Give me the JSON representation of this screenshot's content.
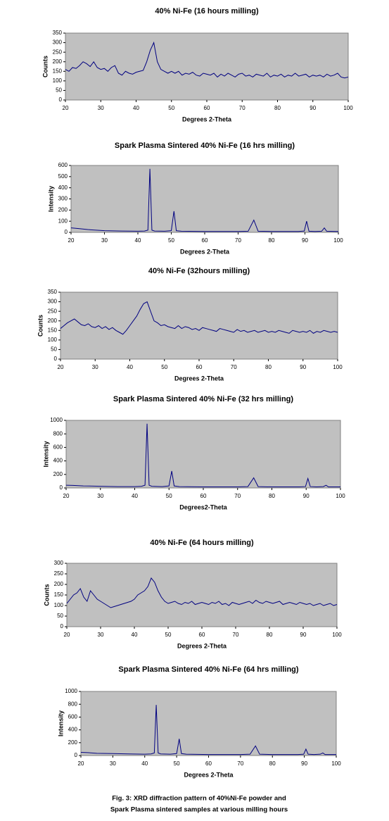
{
  "chart_data": [
    {
      "type": "line",
      "title": "40% Ni-Fe (16 hours milling)",
      "x_label": "Degrees 2-Theta",
      "y_label": "Counts",
      "x": [
        20,
        21,
        22,
        23,
        24,
        25,
        26,
        27,
        28,
        29,
        30,
        31,
        32,
        33,
        34,
        35,
        36,
        37,
        38,
        39,
        40,
        41,
        42,
        43,
        44,
        45,
        46,
        47,
        48,
        49,
        50,
        51,
        52,
        53,
        54,
        55,
        56,
        57,
        58,
        59,
        60,
        61,
        62,
        63,
        64,
        65,
        66,
        67,
        68,
        69,
        70,
        71,
        72,
        73,
        74,
        75,
        76,
        77,
        78,
        79,
        80,
        81,
        82,
        83,
        84,
        85,
        86,
        87,
        88,
        89,
        90,
        91,
        92,
        93,
        94,
        95,
        96,
        97,
        98,
        99,
        100
      ],
      "series": [
        {
          "name": "40% Ni-Fe (16 hours milling)",
          "color": "#000080",
          "values": [
            160,
            150,
            170,
            165,
            180,
            200,
            190,
            175,
            200,
            170,
            160,
            165,
            150,
            170,
            180,
            140,
            130,
            150,
            140,
            135,
            145,
            150,
            155,
            200,
            260,
            300,
            200,
            160,
            150,
            140,
            150,
            140,
            150,
            130,
            140,
            135,
            145,
            130,
            125,
            140,
            135,
            130,
            140,
            120,
            135,
            125,
            140,
            130,
            120,
            135,
            140,
            125,
            130,
            120,
            135,
            130,
            125,
            140,
            120,
            130,
            125,
            135,
            120,
            130,
            125,
            140,
            125,
            130,
            135,
            120,
            130,
            125,
            130,
            120,
            135,
            125,
            130,
            140,
            120,
            115,
            120
          ]
        }
      ],
      "xlim": [
        20,
        100
      ],
      "xticks": [
        20,
        30,
        40,
        50,
        60,
        70,
        80,
        90,
        100
      ],
      "ylim": [
        0,
        350
      ],
      "yticks": [
        0,
        50,
        100,
        150,
        200,
        250,
        300,
        350
      ],
      "background": "#c0c0c0"
    },
    {
      "type": "line",
      "title": "Spark Plasma Sintered 40% Ni-Fe (16 hrs milling)",
      "x_label": "Degrees 2-Theta",
      "y_label": "Intensity",
      "x": [
        20,
        22,
        25,
        30,
        35,
        40,
        42,
        43,
        43.6,
        44.2,
        45,
        48,
        50,
        50.8,
        51.5,
        53,
        60,
        70,
        73,
        74.7,
        76,
        80,
        88,
        89.8,
        90.5,
        91.2,
        93,
        95,
        95.8,
        96.5,
        100
      ],
      "series": [
        {
          "name": "Spark Plasma Sintered 40% Ni-Fe (16 hrs milling)",
          "color": "#000080",
          "values": [
            40,
            35,
            25,
            15,
            12,
            10,
            12,
            20,
            570,
            20,
            12,
            10,
            15,
            190,
            15,
            10,
            8,
            8,
            10,
            110,
            10,
            8,
            8,
            12,
            100,
            10,
            8,
            10,
            40,
            10,
            8
          ]
        }
      ],
      "xlim": [
        20,
        100
      ],
      "xticks": [
        20,
        30,
        40,
        50,
        60,
        70,
        80,
        90,
        100
      ],
      "ylim": [
        0,
        600
      ],
      "yticks": [
        0,
        100,
        200,
        300,
        400,
        500,
        600
      ],
      "background": "#c0c0c0"
    },
    {
      "type": "line",
      "title": "40% Ni-Fe (32hours milling)",
      "x_label": "Degrees 2-Theta",
      "y_label": "Counts",
      "x": [
        20,
        21,
        22,
        23,
        24,
        25,
        26,
        27,
        28,
        29,
        30,
        31,
        32,
        33,
        34,
        35,
        36,
        37,
        38,
        39,
        40,
        41,
        42,
        43,
        44,
        45,
        46,
        47,
        48,
        49,
        50,
        51,
        52,
        53,
        54,
        55,
        56,
        57,
        58,
        59,
        60,
        61,
        62,
        63,
        64,
        65,
        66,
        67,
        68,
        69,
        70,
        71,
        72,
        73,
        74,
        75,
        76,
        77,
        78,
        79,
        80,
        81,
        82,
        83,
        84,
        85,
        86,
        87,
        88,
        89,
        90,
        91,
        92,
        93,
        94,
        95,
        96,
        97,
        98,
        99,
        100
      ],
      "series": [
        {
          "name": "40% Ni-Fe (32hours milling)",
          "color": "#000080",
          "values": [
            160,
            175,
            190,
            200,
            210,
            195,
            180,
            175,
            185,
            170,
            165,
            175,
            160,
            170,
            155,
            165,
            150,
            140,
            130,
            150,
            175,
            200,
            225,
            260,
            290,
            300,
            250,
            200,
            190,
            175,
            180,
            170,
            165,
            160,
            175,
            160,
            170,
            165,
            155,
            160,
            150,
            165,
            160,
            155,
            150,
            145,
            160,
            155,
            150,
            145,
            140,
            155,
            145,
            150,
            140,
            145,
            150,
            140,
            145,
            150,
            140,
            145,
            140,
            150,
            145,
            140,
            135,
            150,
            145,
            140,
            145,
            140,
            150,
            135,
            145,
            140,
            150,
            145,
            140,
            145,
            140
          ]
        }
      ],
      "xlim": [
        20,
        100
      ],
      "xticks": [
        20,
        30,
        40,
        50,
        60,
        70,
        80,
        90,
        100
      ],
      "ylim": [
        0,
        350
      ],
      "yticks": [
        0,
        50,
        100,
        150,
        200,
        250,
        300,
        350
      ],
      "background": "#c0c0c0"
    },
    {
      "type": "line",
      "title": "Spark Plasma Sintered 40% Ni-Fe (32 hrs milling)",
      "x_label": "Degrees2-Theta",
      "y_label": "Intensity",
      "x": [
        20,
        22,
        25,
        30,
        35,
        40,
        42,
        43,
        43.6,
        44.2,
        45,
        48,
        50,
        50.8,
        51.5,
        53,
        60,
        70,
        73,
        74.7,
        76,
        80,
        88,
        89.8,
        90.5,
        91.2,
        93,
        95,
        95.8,
        96.5,
        100
      ],
      "series": [
        {
          "name": "Spark Plasma Sintered 40% Ni-Fe (32 hrs milling)",
          "color": "#000080",
          "values": [
            40,
            38,
            30,
            25,
            20,
            20,
            25,
            40,
            950,
            40,
            25,
            20,
            30,
            250,
            30,
            20,
            15,
            15,
            20,
            150,
            20,
            15,
            15,
            20,
            140,
            20,
            15,
            20,
            40,
            15,
            15
          ]
        }
      ],
      "xlim": [
        20,
        100
      ],
      "xticks": [
        20,
        30,
        40,
        50,
        60,
        70,
        80,
        90,
        100
      ],
      "ylim": [
        0,
        1000
      ],
      "yticks": [
        0,
        200,
        400,
        600,
        800,
        1000
      ],
      "background": "#c0c0c0"
    },
    {
      "type": "line",
      "title": "40% Ni-Fe (64 hours milling)",
      "x_label": "Degrees 2-Theta",
      "y_label": "Counts",
      "x": [
        20,
        21,
        22,
        23,
        24,
        25,
        26,
        27,
        28,
        29,
        30,
        31,
        32,
        33,
        34,
        35,
        36,
        37,
        38,
        39,
        40,
        41,
        42,
        43,
        44,
        45,
        46,
        47,
        48,
        49,
        50,
        51,
        52,
        53,
        54,
        55,
        56,
        57,
        58,
        59,
        60,
        61,
        62,
        63,
        64,
        65,
        66,
        67,
        68,
        69,
        70,
        71,
        72,
        73,
        74,
        75,
        76,
        77,
        78,
        79,
        80,
        81,
        82,
        83,
        84,
        85,
        86,
        87,
        88,
        89,
        90,
        91,
        92,
        93,
        94,
        95,
        96,
        97,
        98,
        99,
        100
      ],
      "series": [
        {
          "name": "40% Ni-Fe (64 hours milling)",
          "color": "#000080",
          "values": [
            110,
            130,
            150,
            160,
            180,
            140,
            120,
            170,
            150,
            130,
            120,
            110,
            100,
            90,
            95,
            100,
            105,
            110,
            115,
            120,
            130,
            150,
            160,
            170,
            190,
            230,
            210,
            170,
            140,
            120,
            110,
            115,
            120,
            110,
            105,
            115,
            110,
            120,
            105,
            110,
            115,
            110,
            105,
            115,
            110,
            120,
            105,
            110,
            100,
            115,
            110,
            105,
            110,
            115,
            120,
            110,
            125,
            115,
            110,
            120,
            115,
            110,
            115,
            120,
            105,
            110,
            115,
            110,
            105,
            115,
            110,
            105,
            110,
            100,
            105,
            110,
            100,
            105,
            110,
            100,
            105
          ]
        }
      ],
      "xlim": [
        20,
        100
      ],
      "xticks": [
        20,
        30,
        40,
        50,
        60,
        70,
        80,
        90,
        100
      ],
      "ylim": [
        0,
        300
      ],
      "yticks": [
        0,
        50,
        100,
        150,
        200,
        250,
        300
      ],
      "background": "#c0c0c0"
    },
    {
      "type": "line",
      "title": "Spark Plasma Sintered 40% Ni-Fe (64 hrs milling)",
      "x_label": "Degrees 2-Theta",
      "y_label": "Intensity",
      "x": [
        20,
        22,
        25,
        30,
        35,
        40,
        42,
        43,
        43.6,
        44.2,
        45,
        48,
        50,
        50.8,
        51.5,
        53,
        60,
        70,
        73,
        74.7,
        76,
        80,
        88,
        89.8,
        90.5,
        91.2,
        93,
        95,
        95.8,
        96.5,
        100
      ],
      "series": [
        {
          "name": "Spark Plasma Sintered 40% Ni-Fe (64 hrs milling)",
          "color": "#000080",
          "values": [
            50,
            45,
            35,
            30,
            25,
            20,
            25,
            40,
            790,
            40,
            25,
            20,
            30,
            260,
            30,
            20,
            15,
            15,
            20,
            150,
            20,
            15,
            15,
            20,
            100,
            20,
            15,
            20,
            40,
            15,
            15
          ]
        }
      ],
      "xlim": [
        20,
        100
      ],
      "xticks": [
        20,
        30,
        40,
        50,
        60,
        70,
        80,
        90,
        100
      ],
      "ylim": [
        0,
        1000
      ],
      "yticks": [
        0,
        200,
        400,
        600,
        800,
        1000
      ],
      "background": "#c0c0c0"
    }
  ],
  "caption": [
    "Fig. 3: XRD diffraction pattern of 40%Ni-Fe powder and",
    "Spark Plasma sintered samples at various milling hours"
  ]
}
